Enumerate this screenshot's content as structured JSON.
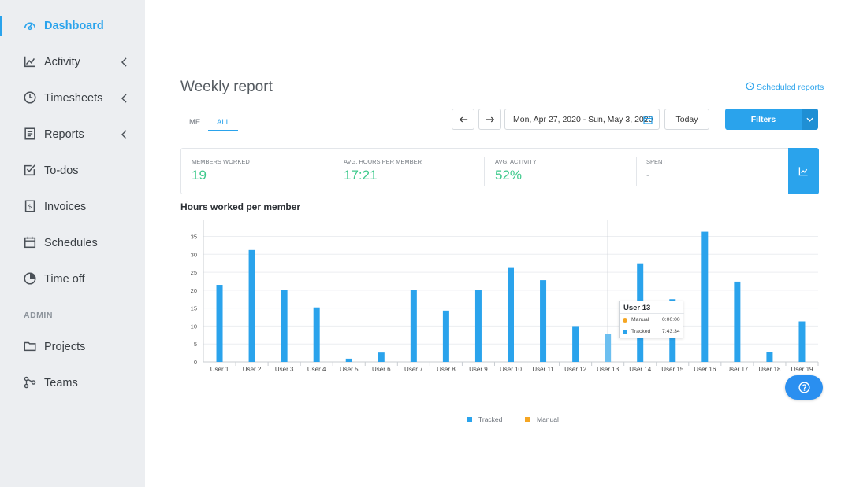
{
  "sidebar": {
    "items": [
      {
        "label": "Dashboard",
        "icon": "dashboard-icon"
      },
      {
        "label": "Activity",
        "icon": "activity-icon"
      },
      {
        "label": "Timesheets",
        "icon": "clock-icon"
      },
      {
        "label": "Reports",
        "icon": "report-icon"
      },
      {
        "label": "To-dos",
        "icon": "checkbox-icon"
      },
      {
        "label": "Invoices",
        "icon": "invoice-icon"
      },
      {
        "label": "Schedules",
        "icon": "calendar-icon"
      },
      {
        "label": "Time off",
        "icon": "pie-icon"
      }
    ],
    "admin_heading": "ADMIN",
    "admin_items": [
      {
        "label": "Projects",
        "icon": "folder-icon"
      },
      {
        "label": "Teams",
        "icon": "teams-icon"
      }
    ]
  },
  "header": {
    "title": "Weekly report",
    "scheduled_reports": "Scheduled reports"
  },
  "tabs": {
    "me": "ME",
    "all": "ALL"
  },
  "toolbar": {
    "date_range": "Mon, Apr 27, 2020 - Sun, May 3, 2020",
    "today": "Today",
    "filters": "Filters"
  },
  "stats": [
    {
      "label": "MEMBERS WORKED",
      "value": "19"
    },
    {
      "label": "AVG. HOURS PER MEMBER",
      "value": "17:21"
    },
    {
      "label": "AVG. ACTIVITY",
      "value": "52%"
    },
    {
      "label": "SPENT",
      "value": "-"
    }
  ],
  "colors": {
    "accent": "#2aa3ec",
    "tracked": "#2aa3ec",
    "manual": "#f5a623",
    "green": "#3ec98c"
  },
  "chart_data": {
    "type": "bar",
    "title": "Hours worked per member",
    "categories": [
      "User 1",
      "User 2",
      "User 3",
      "User 4",
      "User 5",
      "User 6",
      "User 7",
      "User 8",
      "User 9",
      "User 10",
      "User 11",
      "User 12",
      "User 13",
      "User 14",
      "User 15",
      "User 16",
      "User 17",
      "User 18",
      "User 19"
    ],
    "series": [
      {
        "name": "Tracked",
        "color": "#2aa3ec",
        "values": [
          21.5,
          31.2,
          20.1,
          15.2,
          0.9,
          2.6,
          20.0,
          14.3,
          20.0,
          26.2,
          22.8,
          10.0,
          7.7,
          27.5,
          17.5,
          36.3,
          22.4,
          2.7,
          11.3
        ]
      },
      {
        "name": "Manual",
        "color": "#f5a623",
        "values": [
          0,
          0,
          0,
          0,
          0,
          0,
          0,
          0,
          0,
          0,
          0,
          0,
          0,
          0,
          0,
          0,
          0,
          0,
          0
        ]
      }
    ],
    "yticks": [
      0,
      5,
      10,
      15,
      20,
      25,
      30,
      35
    ],
    "ylim": [
      0,
      39.5
    ],
    "highlight_index": 12,
    "grid": true,
    "legend": "bottom-center"
  },
  "tooltip": {
    "title": "User 13",
    "rows": [
      {
        "label": "Manual",
        "value": "0:00:00"
      },
      {
        "label": "Tracked",
        "value": "7:43:34"
      }
    ]
  }
}
